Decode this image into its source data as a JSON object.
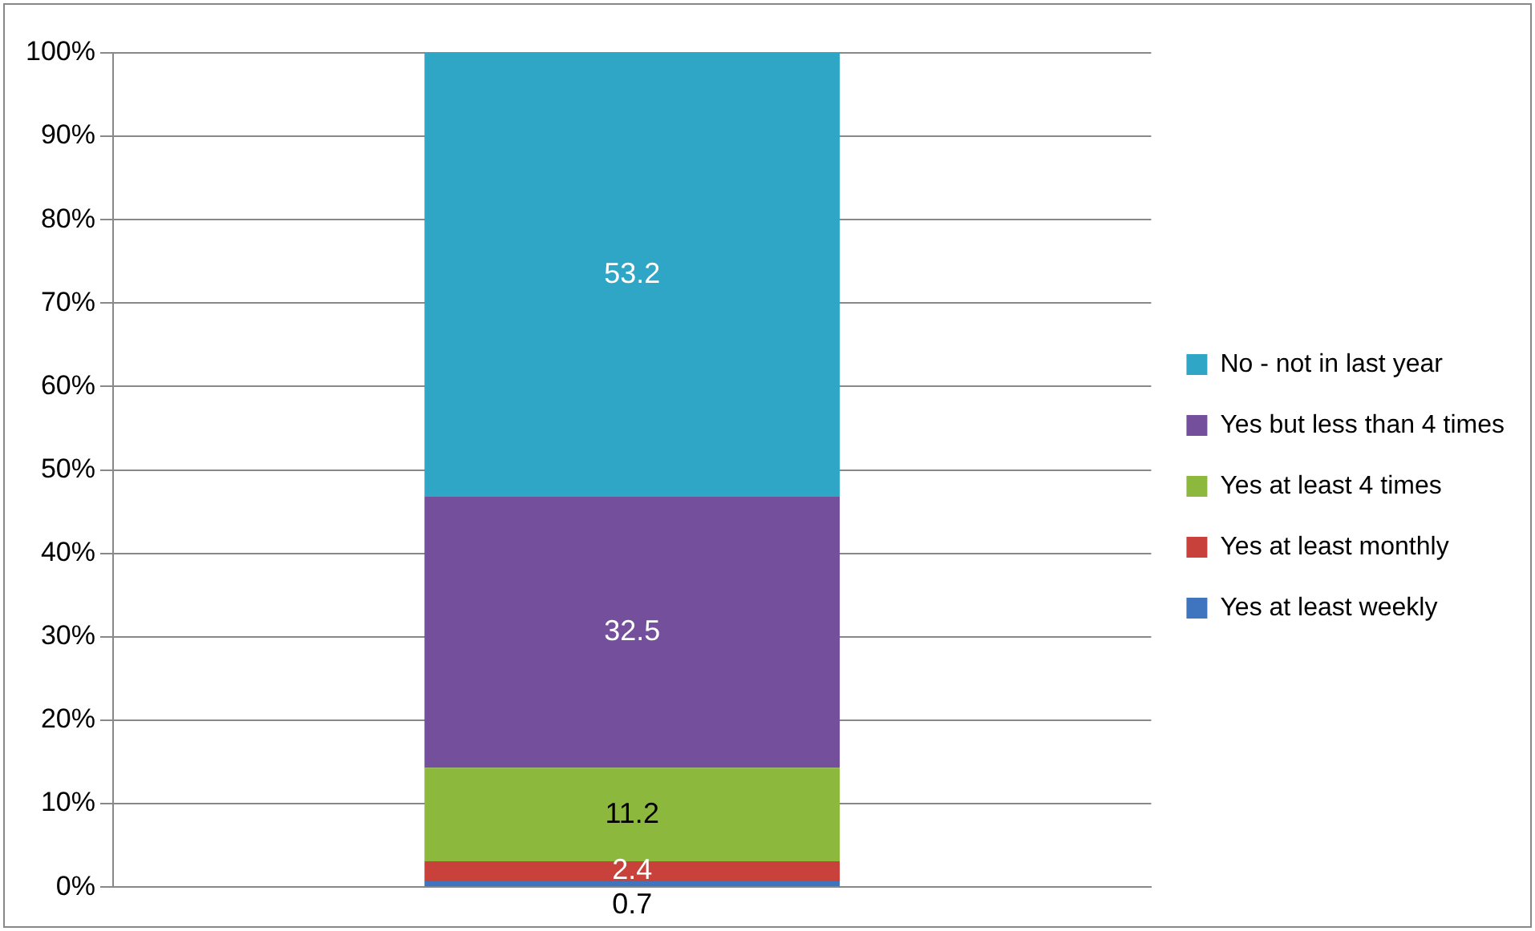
{
  "chart_data": {
    "type": "bar",
    "stacked": true,
    "categories": [
      null
    ],
    "series": [
      {
        "name": "Yes at least weekly",
        "color": "#3f74bf",
        "values": [
          0.7
        ]
      },
      {
        "name": "Yes at least monthly",
        "color": "#c8413a",
        "values": [
          2.4
        ]
      },
      {
        "name": "Yes at least 4 times",
        "color": "#8db83e",
        "values": [
          11.2
        ]
      },
      {
        "name": "Yes but less than 4 times",
        "color": "#74509c",
        "values": [
          32.5
        ]
      },
      {
        "name": "No - not in last year",
        "color": "#30a6c6",
        "values": [
          53.2
        ]
      }
    ],
    "ylim": [
      0,
      100
    ],
    "yticks": [
      {
        "value": 0,
        "label": "0%"
      },
      {
        "value": 10,
        "label": "10%"
      },
      {
        "value": 20,
        "label": "20%"
      },
      {
        "value": 30,
        "label": "30%"
      },
      {
        "value": 40,
        "label": "40%"
      },
      {
        "value": 50,
        "label": "50%"
      },
      {
        "value": 60,
        "label": "60%"
      },
      {
        "value": 70,
        "label": "70%"
      },
      {
        "value": 80,
        "label": "80%"
      },
      {
        "value": 90,
        "label": "90%"
      },
      {
        "value": 100,
        "label": "100%"
      }
    ],
    "grid": "y",
    "legend": "right",
    "data_labels": true
  }
}
